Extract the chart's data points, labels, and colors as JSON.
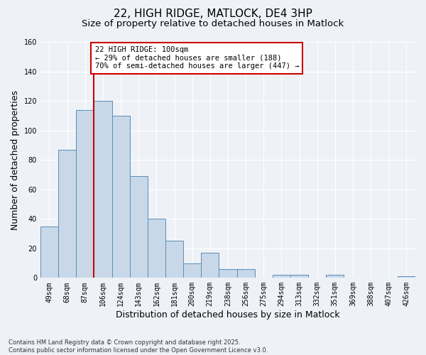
{
  "title1": "22, HIGH RIDGE, MATLOCK, DE4 3HP",
  "title2": "Size of property relative to detached houses in Matlock",
  "xlabel": "Distribution of detached houses by size in Matlock",
  "ylabel": "Number of detached properties",
  "bin_labels": [
    "49sqm",
    "68sqm",
    "87sqm",
    "106sqm",
    "124sqm",
    "143sqm",
    "162sqm",
    "181sqm",
    "200sqm",
    "219sqm",
    "238sqm",
    "256sqm",
    "275sqm",
    "294sqm",
    "313sqm",
    "332sqm",
    "351sqm",
    "369sqm",
    "388sqm",
    "407sqm",
    "426sqm"
  ],
  "bar_heights": [
    35,
    87,
    114,
    120,
    110,
    69,
    40,
    25,
    10,
    17,
    6,
    6,
    0,
    2,
    2,
    0,
    2,
    0,
    0,
    0,
    1
  ],
  "bar_color": "#c8d8e8",
  "bar_edge_color": "#5b8db8",
  "ylim": [
    0,
    160
  ],
  "yticks": [
    0,
    20,
    40,
    60,
    80,
    100,
    120,
    140,
    160
  ],
  "vline_index": 2.5,
  "vline_color": "#cc0000",
  "annotation_text": "22 HIGH RIDGE: 100sqm\n← 29% of detached houses are smaller (188)\n70% of semi-detached houses are larger (447) →",
  "annotation_box_color": "#ffffff",
  "annotation_border_color": "#cc0000",
  "footer_text": "Contains HM Land Registry data © Crown copyright and database right 2025.\nContains public sector information licensed under the Open Government Licence v3.0.",
  "background_color": "#eef2f7",
  "grid_color": "#ffffff",
  "title_fontsize": 11,
  "subtitle_fontsize": 9.5,
  "tick_fontsize": 7,
  "ylabel_fontsize": 9,
  "xlabel_fontsize": 9,
  "annot_fontsize": 7.5,
  "footer_fontsize": 6
}
